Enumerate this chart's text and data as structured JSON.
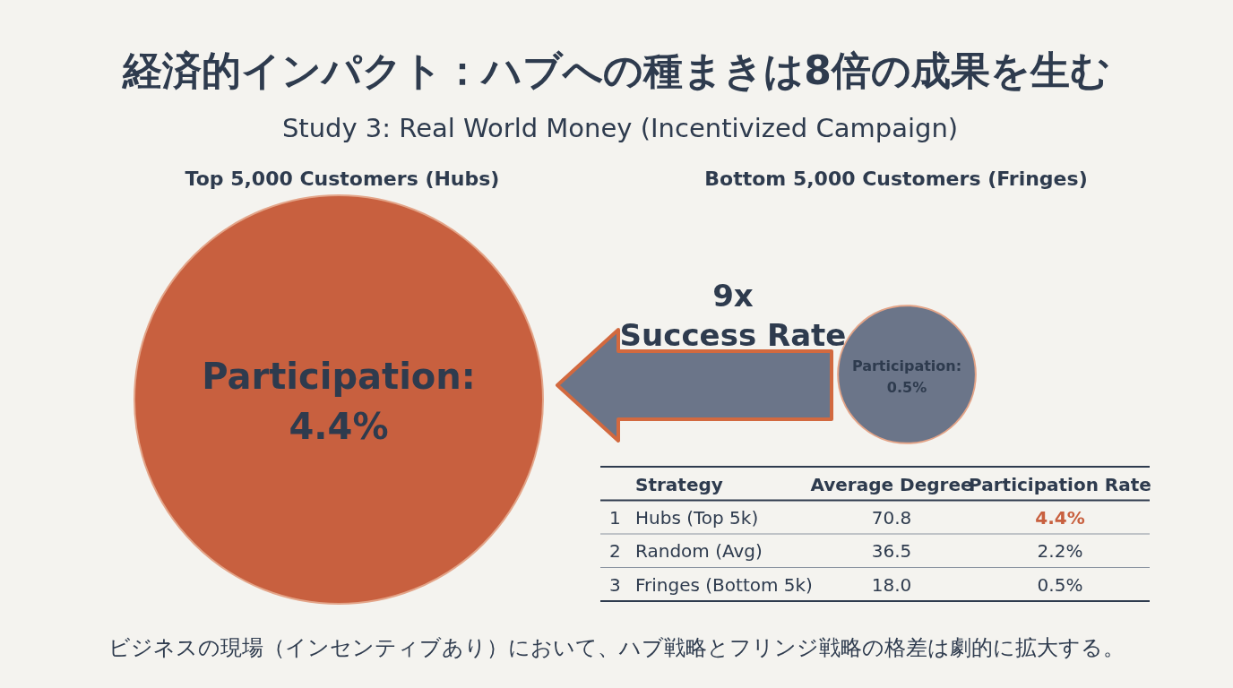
{
  "chart_data": [
    {
      "type": "other",
      "title": "経済的インパクト：ハブへの種まきは8倍の成果を生む",
      "subtitle": "Study 3: Real World Money (Incentivized Campaign)",
      "categories": [
        "Top 5,000 Customers (Hubs)",
        "Bottom 5,000 Customers (Fringes)"
      ],
      "values": [
        4.4,
        0.5
      ],
      "colors": [
        "#c8603f",
        "#6b7589"
      ],
      "value_labels": [
        "Participation:\n4.4%",
        "Participation:\n0.5%"
      ],
      "annotations": [
        "9x\nSuccess Rate",
        "ビジネスの現場（インセンティブあり）において、ハブ戦略とフリンジ戦略の格差は劇的に拡大する。"
      ]
    },
    {
      "type": "other",
      "xlabel": "Strategy",
      "categories": [
        "1 Hubs (Top 5k)",
        "2 Random (Avg)",
        "3 Fringes (Bottom 5k)"
      ],
      "series": [
        {
          "name": "Average Degree",
          "color": "#2e3b4e",
          "values": [
            70.8,
            36.5,
            18.0
          ],
          "value_labels": [
            "70.8",
            "36.5",
            "18.0"
          ]
        },
        {
          "name": "Participation Rate",
          "color": "#2e3b4e",
          "colors": [
            "#c8603f",
            "#2e3b4e",
            "#2e3b4e"
          ],
          "values": [
            4.4,
            2.2,
            0.5
          ],
          "value_labels": [
            "4.4%",
            "2.2%",
            "0.5%"
          ]
        }
      ]
    }
  ]
}
